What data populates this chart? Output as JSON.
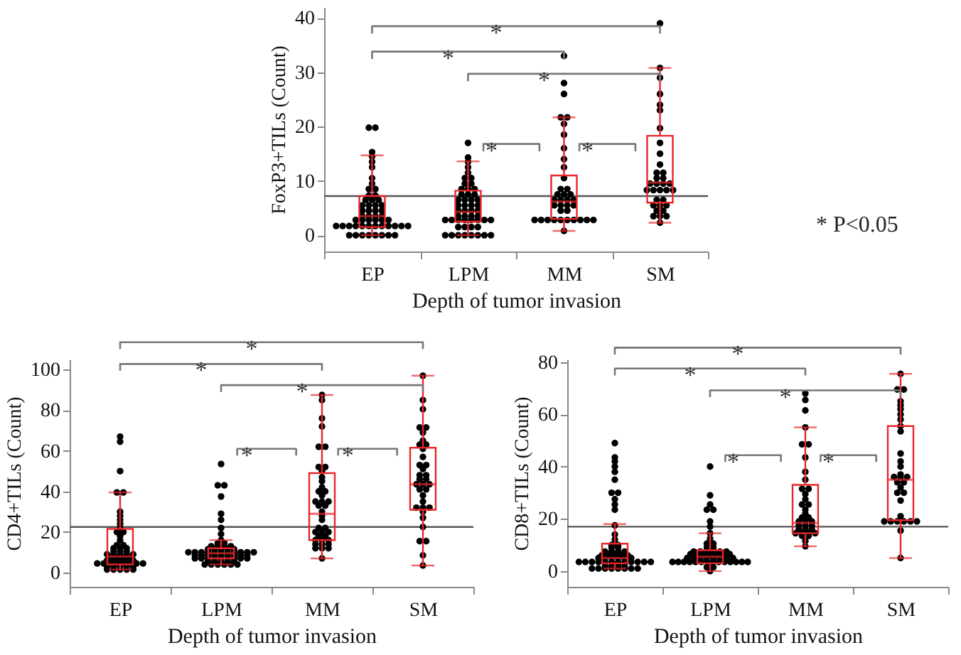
{
  "chart_data": [
    {
      "type": "box",
      "ylabel": "FoxP3+TILs (Count)",
      "xlabel": "Depth of tumor invasion",
      "categories": [
        "EP",
        "LPM",
        "MM",
        "SM"
      ],
      "color": "#e8262b",
      "ylim": [
        -3,
        42
      ],
      "yticks": [
        0,
        10,
        20,
        30,
        40
      ],
      "boxes": [
        {
          "low": 0,
          "q1": 1.5,
          "median": 3.5,
          "q3": 7.2,
          "high": 14.7
        },
        {
          "low": 0,
          "q1": 2.5,
          "median": 4.3,
          "q3": 8.2,
          "high": 13.6
        },
        {
          "low": 0.8,
          "q1": 3,
          "median": 6.2,
          "q3": 11,
          "high": 21.7
        },
        {
          "low": 2.3,
          "q1": 6,
          "median": 9.7,
          "q3": 18.3,
          "high": 30.8
        }
      ],
      "series": [
        {
          "type": "scatter",
          "color": "#000000",
          "x": [
            "EP",
            "EP",
            "EP",
            "EP",
            "EP",
            "EP",
            "EP",
            "EP",
            "EP",
            "EP",
            "EP",
            "EP",
            "EP",
            "EP",
            "EP",
            "EP",
            "EP",
            "EP",
            "EP",
            "EP",
            "EP",
            "EP",
            "EP",
            "EP",
            "EP",
            "EP",
            "EP",
            "EP",
            "EP",
            "EP",
            "EP",
            "EP",
            "EP",
            "EP",
            "EP",
            "EP",
            "EP",
            "EP",
            "EP",
            "EP",
            "EP",
            "EP",
            "EP",
            "EP",
            "EP",
            "EP",
            "EP",
            "EP",
            "EP",
            "EP",
            "EP",
            "EP",
            "EP",
            "LPM",
            "LPM",
            "LPM",
            "LPM",
            "LPM",
            "LPM",
            "LPM",
            "LPM",
            "LPM",
            "LPM",
            "LPM",
            "LPM",
            "LPM",
            "LPM",
            "LPM",
            "LPM",
            "LPM",
            "LPM",
            "LPM",
            "LPM",
            "LPM",
            "LPM",
            "LPM",
            "LPM",
            "LPM",
            "LPM",
            "LPM",
            "LPM",
            "LPM",
            "LPM",
            "LPM",
            "LPM",
            "LPM",
            "LPM",
            "LPM",
            "LPM",
            "LPM",
            "LPM",
            "LPM",
            "LPM",
            "LPM",
            "LPM",
            "LPM",
            "LPM",
            "LPM",
            "LPM",
            "LPM",
            "LPM",
            "LPM",
            "LPM",
            "LPM",
            "MM",
            "MM",
            "MM",
            "MM",
            "MM",
            "MM",
            "MM",
            "MM",
            "MM",
            "MM",
            "MM",
            "MM",
            "MM",
            "MM",
            "MM",
            "MM",
            "MM",
            "MM",
            "MM",
            "MM",
            "MM",
            "MM",
            "MM",
            "MM",
            "MM",
            "MM",
            "MM",
            "MM",
            "MM",
            "MM",
            "MM",
            "MM",
            "MM",
            "MM",
            "MM",
            "MM",
            "MM",
            "SM",
            "SM",
            "SM",
            "SM",
            "SM",
            "SM",
            "SM",
            "SM",
            "SM",
            "SM",
            "SM",
            "SM",
            "SM",
            "SM",
            "SM",
            "SM",
            "SM",
            "SM",
            "SM",
            "SM",
            "SM",
            "SM",
            "SM",
            "SM",
            "SM",
            "SM",
            "SM",
            "SM",
            "SM",
            "SM",
            "SM",
            "SM",
            "SM",
            "SM"
          ],
          "values": [
            0,
            0,
            0,
            0,
            0,
            0,
            0,
            0,
            1.7,
            1.7,
            1.7,
            1.7,
            1.7,
            1.7,
            1.7,
            1.7,
            1.7,
            1.7,
            1.7,
            1.7,
            2.8,
            2.8,
            2.8,
            2.8,
            2.8,
            2.8,
            3.5,
            3.5,
            3.5,
            3.5,
            4.5,
            4.5,
            4.5,
            4.5,
            5.5,
            5.5,
            5.5,
            5.5,
            6.5,
            6.5,
            6.5,
            7.3,
            7.3,
            8.5,
            8.5,
            9.5,
            10.5,
            12.5,
            13.5,
            14.5,
            15.3,
            19.8,
            19.8,
            0,
            0,
            0,
            0,
            0,
            0,
            0,
            0,
            1.5,
            1.5,
            1.5,
            1.5,
            2.8,
            2.8,
            2.8,
            2.8,
            2.8,
            2.8,
            2.8,
            2.8,
            3.5,
            3.5,
            3.5,
            3.5,
            4.5,
            4.5,
            4.5,
            4.5,
            5.5,
            5.5,
            5.5,
            5.5,
            6.5,
            6.5,
            6.5,
            6.5,
            7.5,
            7.5,
            7.5,
            8.5,
            8.5,
            8.5,
            9.5,
            9.5,
            10.5,
            10.5,
            11.5,
            12.5,
            13.5,
            14.3,
            17,
            2.8,
            0.8,
            2.8,
            2.8,
            2.8,
            2.8,
            2.8,
            2.8,
            2.8,
            2.8,
            4.5,
            4.5,
            5.5,
            5.5,
            5.5,
            6.5,
            6.5,
            6.5,
            6.5,
            7.5,
            7.5,
            8.5,
            8.5,
            10.5,
            12.5,
            14,
            16,
            18.5,
            20.5,
            21.7,
            21.7,
            26,
            28,
            33,
            2.8,
            5.5,
            7.5,
            2.3,
            3.5,
            3.5,
            3.5,
            4.5,
            4.5,
            5.5,
            5.5,
            5.5,
            6.5,
            6.5,
            8.3,
            8.3,
            8.3,
            8.3,
            9.5,
            9.5,
            9.5,
            10.5,
            10.5,
            11.5,
            11.5,
            13,
            15,
            17,
            19.7,
            23,
            24,
            26,
            29,
            30.8,
            39,
            8.3,
            9.5
          ]
        }
      ],
      "ref_lines": [
        {
          "axis": "y",
          "value": 7.2,
          "color": "#555555"
        }
      ],
      "annotations": [
        "*",
        "*",
        "*",
        "*",
        "*",
        "* P<0.05"
      ]
    },
    {
      "type": "box",
      "ylabel": "CD4+TILs (Count)",
      "xlabel": "Depth of tumor invasion",
      "categories": [
        "EP",
        "LPM",
        "MM",
        "SM"
      ],
      "color": "#e8262b",
      "ylim": [
        -7,
        105
      ],
      "yticks": [
        0,
        20,
        40,
        60,
        80,
        100
      ],
      "boxes": [
        {
          "low": 1.5,
          "q1": 4,
          "median": 8,
          "q3": 21.5,
          "high": 39.5
        },
        {
          "low": 4,
          "q1": 7,
          "median": 9.5,
          "q3": 12,
          "high": 16
        },
        {
          "low": 7,
          "q1": 16,
          "median": 29,
          "q3": 49,
          "high": 87.5
        },
        {
          "low": 3.5,
          "q1": 31,
          "median": 43.5,
          "q3": 61.5,
          "high": 97
        }
      ],
      "series": [
        {
          "type": "scatter",
          "color": "#000000",
          "x": [
            "EP",
            "EP",
            "EP",
            "EP",
            "EP",
            "EP",
            "EP",
            "EP",
            "EP",
            "EP",
            "EP",
            "EP",
            "EP",
            "EP",
            "EP",
            "EP",
            "EP",
            "EP",
            "EP",
            "EP",
            "EP",
            "EP",
            "EP",
            "EP",
            "EP",
            "EP",
            "EP",
            "EP",
            "EP",
            "EP",
            "EP",
            "EP",
            "EP",
            "EP",
            "EP",
            "EP",
            "EP",
            "EP",
            "EP",
            "EP",
            "EP",
            "EP",
            "EP",
            "EP",
            "EP",
            "EP",
            "EP",
            "EP",
            "EP",
            "EP",
            "EP",
            "EP",
            "EP",
            "EP",
            "LPM",
            "LPM",
            "LPM",
            "LPM",
            "LPM",
            "LPM",
            "LPM",
            "LPM",
            "LPM",
            "LPM",
            "LPM",
            "LPM",
            "LPM",
            "LPM",
            "LPM",
            "LPM",
            "LPM",
            "LPM",
            "LPM",
            "LPM",
            "LPM",
            "LPM",
            "LPM",
            "LPM",
            "LPM",
            "LPM",
            "LPM",
            "LPM",
            "LPM",
            "LPM",
            "LPM",
            "LPM",
            "LPM",
            "LPM",
            "LPM",
            "LPM",
            "LPM",
            "LPM",
            "LPM",
            "LPM",
            "LPM",
            "LPM",
            "LPM",
            "LPM",
            "LPM",
            "LPM",
            "LPM",
            "LPM",
            "LPM",
            "LPM",
            "LPM",
            "LPM",
            "LPM",
            "LPM",
            "LPM",
            "LPM",
            "LPM",
            "LPM",
            "LPM",
            "LPM",
            "MM",
            "MM",
            "MM",
            "MM",
            "MM",
            "MM",
            "MM",
            "MM",
            "MM",
            "MM",
            "MM",
            "MM",
            "MM",
            "MM",
            "MM",
            "MM",
            "MM",
            "MM",
            "MM",
            "MM",
            "MM",
            "MM",
            "MM",
            "MM",
            "MM",
            "MM",
            "MM",
            "MM",
            "MM",
            "MM",
            "MM",
            "MM",
            "MM",
            "MM",
            "MM",
            "MM",
            "MM",
            "MM",
            "MM",
            "MM",
            "SM",
            "SM",
            "SM",
            "SM",
            "SM",
            "SM",
            "SM",
            "SM",
            "SM",
            "SM",
            "SM",
            "SM",
            "SM",
            "SM",
            "SM",
            "SM",
            "SM",
            "SM",
            "SM",
            "SM",
            "SM",
            "SM",
            "SM",
            "SM",
            "SM",
            "SM",
            "SM",
            "SM",
            "SM",
            "SM",
            "SM",
            "SM",
            "SM",
            "SM",
            "SM"
          ],
          "values": [
            1.5,
            1.5,
            1.5,
            1.5,
            3,
            3,
            3,
            3,
            4.5,
            4.5,
            4.5,
            4.5,
            4.5,
            4.5,
            4.5,
            4.5,
            6,
            6,
            6,
            6,
            7.5,
            7.5,
            7.5,
            7.5,
            9,
            9,
            9,
            9,
            10.5,
            10.5,
            10.5,
            12,
            12,
            12,
            13.5,
            13.5,
            16,
            18,
            20,
            20,
            22,
            24,
            26,
            28,
            30,
            39.5,
            39.5,
            50,
            64.5,
            67,
            6,
            9,
            3,
            1.5,
            4,
            4,
            4,
            4,
            4,
            4,
            5.5,
            5.5,
            5.5,
            5.5,
            5.5,
            7,
            7,
            7,
            7,
            7,
            7,
            7,
            7,
            8.5,
            8.5,
            8.5,
            8.5,
            8.5,
            8.5,
            8.5,
            8.5,
            10,
            10,
            10,
            10,
            10,
            10,
            10,
            10,
            10,
            10,
            11.5,
            11.5,
            11.5,
            11.5,
            11.5,
            13,
            13,
            13,
            13,
            14.5,
            14.5,
            16,
            19,
            22,
            26,
            29,
            37.5,
            43,
            43,
            53.5,
            7,
            8.5,
            10,
            7,
            12,
            12,
            12,
            14,
            14,
            14,
            16,
            16,
            16,
            18,
            18,
            20,
            20,
            20,
            22,
            22,
            26,
            28,
            30,
            33,
            33,
            35,
            35,
            35,
            38,
            40,
            40,
            42,
            45,
            47,
            50,
            52,
            52,
            62,
            62,
            72,
            76,
            85,
            87.5,
            3.5,
            8.5,
            15.5,
            15.5,
            22.5,
            27,
            30,
            32,
            32,
            32,
            35,
            38,
            41,
            41,
            43.5,
            43.5,
            43.5,
            46,
            46,
            48,
            48,
            51,
            53,
            53,
            57,
            61,
            63,
            63,
            65,
            69,
            71.5,
            71.5,
            80.5,
            97,
            85
          ]
        }
      ],
      "ref_lines": [
        {
          "axis": "y",
          "value": 22.5,
          "color": "#555555"
        }
      ],
      "annotations": [
        "*",
        "*",
        "*",
        "*",
        "*"
      ]
    },
    {
      "type": "box",
      "ylabel": "CD8+TILs (Count)",
      "xlabel": "Depth of tumor invasion",
      "categories": [
        "EP",
        "LPM",
        "MM",
        "SM"
      ],
      "color": "#e8262b",
      "ylim": [
        -6,
        81
      ],
      "yticks": [
        0,
        20,
        40,
        60,
        80
      ],
      "boxes": [
        {
          "low": 1,
          "q1": 3,
          "median": 5,
          "q3": 10.5,
          "high": 18
        },
        {
          "low": 0,
          "q1": 3,
          "median": 5.5,
          "q3": 8,
          "high": 14.5
        },
        {
          "low": 9.5,
          "q1": 14.5,
          "median": 18.5,
          "q3": 33,
          "high": 55
        },
        {
          "low": 5,
          "q1": 19.5,
          "median": 35,
          "q3": 55.5,
          "high": 75.5
        }
      ],
      "series": [
        {
          "type": "scatter",
          "color": "#000000",
          "x": [
            "EP",
            "EP",
            "EP",
            "EP",
            "EP",
            "EP",
            "EP",
            "EP",
            "EP",
            "EP",
            "EP",
            "EP",
            "EP",
            "EP",
            "EP",
            "EP",
            "EP",
            "EP",
            "EP",
            "EP",
            "EP",
            "EP",
            "EP",
            "EP",
            "EP",
            "EP",
            "EP",
            "EP",
            "EP",
            "EP",
            "EP",
            "EP",
            "EP",
            "EP",
            "EP",
            "EP",
            "EP",
            "EP",
            "EP",
            "EP",
            "EP",
            "EP",
            "EP",
            "EP",
            "EP",
            "EP",
            "EP",
            "EP",
            "EP",
            "EP",
            "EP",
            "EP",
            "EP",
            "EP",
            "EP",
            "EP",
            "EP",
            "LPM",
            "LPM",
            "LPM",
            "LPM",
            "LPM",
            "LPM",
            "LPM",
            "LPM",
            "LPM",
            "LPM",
            "LPM",
            "LPM",
            "LPM",
            "LPM",
            "LPM",
            "LPM",
            "LPM",
            "LPM",
            "LPM",
            "LPM",
            "LPM",
            "LPM",
            "LPM",
            "LPM",
            "LPM",
            "LPM",
            "LPM",
            "LPM",
            "LPM",
            "LPM",
            "LPM",
            "LPM",
            "LPM",
            "LPM",
            "LPM",
            "LPM",
            "LPM",
            "LPM",
            "LPM",
            "LPM",
            "LPM",
            "LPM",
            "LPM",
            "LPM",
            "LPM",
            "LPM",
            "LPM",
            "LPM",
            "LPM",
            "LPM",
            "LPM",
            "MM",
            "MM",
            "MM",
            "MM",
            "MM",
            "MM",
            "MM",
            "MM",
            "MM",
            "MM",
            "MM",
            "MM",
            "MM",
            "MM",
            "MM",
            "MM",
            "MM",
            "MM",
            "MM",
            "MM",
            "MM",
            "MM",
            "MM",
            "MM",
            "MM",
            "MM",
            "MM",
            "MM",
            "MM",
            "MM",
            "MM",
            "MM",
            "MM",
            "MM",
            "MM",
            "MM",
            "SM",
            "SM",
            "SM",
            "SM",
            "SM",
            "SM",
            "SM",
            "SM",
            "SM",
            "SM",
            "SM",
            "SM",
            "SM",
            "SM",
            "SM",
            "SM",
            "SM",
            "SM",
            "SM",
            "SM",
            "SM",
            "SM",
            "SM",
            "SM",
            "SM",
            "SM",
            "SM",
            "SM",
            "SM",
            "SM",
            "SM",
            "SM"
          ],
          "values": [
            1,
            1,
            1,
            1,
            1,
            1,
            1,
            1,
            2,
            2,
            2,
            2,
            3.5,
            3.5,
            3.5,
            3.5,
            3.5,
            3.5,
            3.5,
            3.5,
            3.5,
            3.5,
            3.5,
            3.5,
            5,
            5,
            5,
            5,
            5,
            5,
            6,
            6,
            6,
            6,
            6,
            7.5,
            7.5,
            7.5,
            7.5,
            9,
            9,
            10,
            10,
            12,
            14,
            17.5,
            23.5,
            25.5,
            27.5,
            30,
            30,
            35,
            38,
            40,
            42,
            43.5,
            49,
            0,
            1.5,
            1.5,
            3.5,
            3.5,
            3.5,
            3.5,
            3.5,
            3.5,
            3.5,
            3.5,
            3.5,
            3.5,
            3.5,
            3.5,
            3.5,
            3.5,
            5,
            5,
            5,
            5,
            5,
            5,
            5,
            5,
            6.5,
            6.5,
            6.5,
            6.5,
            6.5,
            6.5,
            6.5,
            7.5,
            7.5,
            7.5,
            7.5,
            7.5,
            7.5,
            9,
            9,
            10.5,
            10.5,
            12.5,
            14.5,
            17,
            19,
            23.5,
            23.5,
            25.5,
            29,
            40,
            9.5,
            11.5,
            13.5,
            13.5,
            14.5,
            14.5,
            14.5,
            14.5,
            16,
            16,
            16,
            17.5,
            17.5,
            17.5,
            19,
            19,
            19,
            20.5,
            20.5,
            22,
            23.5,
            25.5,
            25.5,
            27.5,
            29.5,
            31.5,
            31.5,
            35,
            38,
            43.5,
            48.5,
            48.5,
            55,
            68,
            61.5,
            65.5,
            5,
            15.5,
            19,
            19,
            19,
            19,
            19,
            19,
            21,
            27,
            30,
            30,
            32,
            34,
            34,
            36,
            36,
            36,
            37,
            40,
            42,
            45,
            53.5,
            55.5,
            58,
            60,
            62,
            63.5,
            65,
            69.5,
            69.5,
            75.5
          ]
        }
      ],
      "ref_lines": [
        {
          "axis": "y",
          "value": 17,
          "color": "#555555"
        }
      ],
      "annotations": [
        "*",
        "*",
        "*",
        "*",
        "*"
      ]
    }
  ]
}
